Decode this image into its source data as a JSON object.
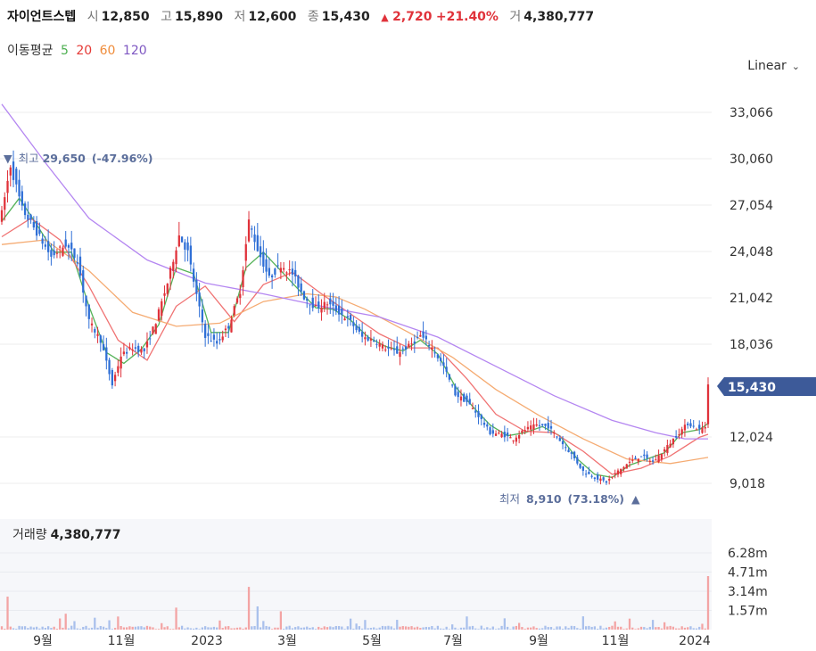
{
  "header": {
    "name": "자이언트스텝",
    "open_label": "시",
    "open": "12,850",
    "high_label": "고",
    "high": "15,890",
    "low_label": "저",
    "low": "12,600",
    "close_label": "종",
    "close": "15,430",
    "change_arrow": "▲",
    "change": "2,720",
    "change_pct": "+21.40%",
    "volume_label": "거",
    "volume": "4,380,777"
  },
  "ma_legend": {
    "title": "이동평균",
    "periods": [
      {
        "label": "5",
        "color": "#4caf50"
      },
      {
        "label": "20",
        "color": "#e53935"
      },
      {
        "label": "60",
        "color": "#ef8c3b"
      },
      {
        "label": "120",
        "color": "#7e57c2"
      }
    ]
  },
  "scale_selector": {
    "label": "Linear",
    "icon": "chevron-down-icon"
  },
  "colors": {
    "up": "#e0323a",
    "down": "#2f6fd6",
    "ma5": "#4caf50",
    "ma20": "#ef6b6b",
    "ma60": "#f4a66a",
    "ma120": "#b07ff0",
    "price_tag": "#3d5a99",
    "annotation": "#5b6e9b"
  },
  "chart_data": {
    "type": "candlestick",
    "price_axis_ticks": [
      "33,066",
      "30,060",
      "27,054",
      "24,048",
      "21,042",
      "18,036",
      "12,024",
      "9,018"
    ],
    "current_price_tag": "15,430",
    "ylim": [
      7500,
      35000
    ],
    "x_axis_ticks": [
      "9월",
      "11월",
      "2023",
      "3월",
      "5월",
      "7월",
      "9월",
      "11월",
      "2024"
    ],
    "high_annotation": {
      "arrow": "▼",
      "label": "최고",
      "value": "29,650",
      "pct": "(-47.96%)"
    },
    "low_annotation": {
      "label": "최저",
      "value": "8,910",
      "pct": "(73.18%)",
      "arrow": "▲"
    },
    "price_path": [
      [
        0,
        26500
      ],
      [
        3,
        29650
      ],
      [
        7,
        26800
      ],
      [
        12,
        25300
      ],
      [
        17,
        23700
      ],
      [
        22,
        24500
      ],
      [
        26,
        23500
      ],
      [
        30,
        19500
      ],
      [
        34,
        18300
      ],
      [
        38,
        15400
      ],
      [
        41,
        17300
      ],
      [
        45,
        17800
      ],
      [
        49,
        17600
      ],
      [
        53,
        19500
      ],
      [
        57,
        22000
      ],
      [
        61,
        25100
      ],
      [
        64,
        24000
      ],
      [
        67,
        21200
      ],
      [
        70,
        18600
      ],
      [
        74,
        18100
      ],
      [
        78,
        19200
      ],
      [
        82,
        21500
      ],
      [
        85,
        26000
      ],
      [
        88,
        24200
      ],
      [
        92,
        22300
      ],
      [
        96,
        23200
      ],
      [
        100,
        22600
      ],
      [
        104,
        21100
      ],
      [
        108,
        20400
      ],
      [
        112,
        20700
      ],
      [
        116,
        20100
      ],
      [
        120,
        19500
      ],
      [
        124,
        18500
      ],
      [
        128,
        18300
      ],
      [
        132,
        17800
      ],
      [
        136,
        17500
      ],
      [
        140,
        17900
      ],
      [
        144,
        18600
      ],
      [
        148,
        17800
      ],
      [
        152,
        16600
      ],
      [
        156,
        14800
      ],
      [
        160,
        14300
      ],
      [
        164,
        13400
      ],
      [
        168,
        12300
      ],
      [
        172,
        12200
      ],
      [
        176,
        11900
      ],
      [
        180,
        12500
      ],
      [
        184,
        12800
      ],
      [
        188,
        12700
      ],
      [
        192,
        11800
      ],
      [
        196,
        10900
      ],
      [
        200,
        9800
      ],
      [
        204,
        9400
      ],
      [
        208,
        9100
      ],
      [
        212,
        9800
      ],
      [
        216,
        10400
      ],
      [
        220,
        10800
      ],
      [
        224,
        10400
      ],
      [
        228,
        11200
      ],
      [
        232,
        12100
      ],
      [
        236,
        12900
      ],
      [
        240,
        12500
      ],
      [
        242,
        12700
      ],
      [
        243,
        15430
      ]
    ],
    "ma_paths": {
      "ma5": [
        [
          0,
          26000
        ],
        [
          6,
          27500
        ],
        [
          12,
          25800
        ],
        [
          18,
          24000
        ],
        [
          24,
          24000
        ],
        [
          30,
          20500
        ],
        [
          36,
          17500
        ],
        [
          42,
          16800
        ],
        [
          48,
          17700
        ],
        [
          54,
          19300
        ],
        [
          60,
          23000
        ],
        [
          66,
          22600
        ],
        [
          72,
          18800
        ],
        [
          78,
          18800
        ],
        [
          84,
          23000
        ],
        [
          90,
          24000
        ],
        [
          96,
          22800
        ],
        [
          102,
          21600
        ],
        [
          108,
          20400
        ],
        [
          114,
          20300
        ],
        [
          120,
          19600
        ],
        [
          126,
          18500
        ],
        [
          132,
          17900
        ],
        [
          138,
          17600
        ],
        [
          144,
          18300
        ],
        [
          150,
          17400
        ],
        [
          156,
          15300
        ],
        [
          162,
          14000
        ],
        [
          168,
          12800
        ],
        [
          174,
          12100
        ],
        [
          180,
          12300
        ],
        [
          186,
          12700
        ],
        [
          192,
          12100
        ],
        [
          198,
          10600
        ],
        [
          204,
          9600
        ],
        [
          210,
          9400
        ],
        [
          216,
          10200
        ],
        [
          222,
          10600
        ],
        [
          228,
          11000
        ],
        [
          234,
          12300
        ],
        [
          240,
          12500
        ],
        [
          243,
          12900
        ]
      ],
      "ma20": [
        [
          0,
          25000
        ],
        [
          10,
          26200
        ],
        [
          20,
          24800
        ],
        [
          30,
          21800
        ],
        [
          40,
          18300
        ],
        [
          50,
          17000
        ],
        [
          60,
          20500
        ],
        [
          70,
          21800
        ],
        [
          80,
          19500
        ],
        [
          90,
          21900
        ],
        [
          100,
          22700
        ],
        [
          110,
          21300
        ],
        [
          120,
          20000
        ],
        [
          130,
          18700
        ],
        [
          140,
          17800
        ],
        [
          150,
          17800
        ],
        [
          160,
          15800
        ],
        [
          170,
          13500
        ],
        [
          180,
          12400
        ],
        [
          190,
          12300
        ],
        [
          200,
          11100
        ],
        [
          210,
          9600
        ],
        [
          220,
          10000
        ],
        [
          230,
          10800
        ],
        [
          240,
          12000
        ],
        [
          243,
          12200
        ]
      ],
      "ma60": [
        [
          0,
          24500
        ],
        [
          15,
          24800
        ],
        [
          30,
          22800
        ],
        [
          45,
          20100
        ],
        [
          60,
          19200
        ],
        [
          75,
          19400
        ],
        [
          90,
          20800
        ],
        [
          105,
          21300
        ],
        [
          115,
          21100
        ],
        [
          125,
          20300
        ],
        [
          140,
          18800
        ],
        [
          155,
          17200
        ],
        [
          170,
          15100
        ],
        [
          185,
          13400
        ],
        [
          200,
          11900
        ],
        [
          215,
          10600
        ],
        [
          230,
          10300
        ],
        [
          243,
          10700
        ]
      ],
      "ma120": [
        [
          0,
          33600
        ],
        [
          15,
          29800
        ],
        [
          30,
          26200
        ],
        [
          50,
          23500
        ],
        [
          70,
          22000
        ],
        [
          90,
          21300
        ],
        [
          110,
          20500
        ],
        [
          130,
          19800
        ],
        [
          150,
          18500
        ],
        [
          170,
          16600
        ],
        [
          190,
          14700
        ],
        [
          210,
          13100
        ],
        [
          225,
          12300
        ],
        [
          235,
          11900
        ],
        [
          243,
          11900
        ]
      ]
    },
    "volume": {
      "title": "거래량",
      "value": "4,380,777",
      "axis_ticks": [
        "6.28m",
        "4.71m",
        "3.14m",
        "1.57m"
      ],
      "ylim": [
        0,
        7850000
      ],
      "spikes": [
        [
          2,
          2700000
        ],
        [
          22,
          1300000
        ],
        [
          60,
          1800000
        ],
        [
          85,
          3500000
        ],
        [
          88,
          1900000
        ],
        [
          96,
          1500000
        ],
        [
          120,
          900000
        ],
        [
          136,
          800000
        ],
        [
          216,
          900000
        ],
        [
          228,
          600000
        ],
        [
          243,
          4380777
        ]
      ]
    }
  }
}
